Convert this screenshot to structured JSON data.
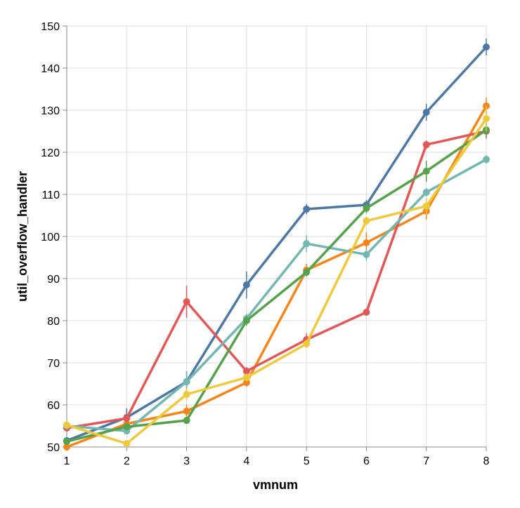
{
  "chart_data": {
    "type": "line",
    "xlabel": "vmnum",
    "ylabel": "util_overflow_handler",
    "x": [
      1,
      2,
      3,
      4,
      5,
      6,
      7,
      8
    ],
    "xlim": [
      1,
      8
    ],
    "ylim": [
      50,
      150
    ],
    "xticks": [
      1,
      2,
      3,
      4,
      5,
      6,
      7,
      8
    ],
    "yticks": [
      50,
      60,
      70,
      80,
      90,
      100,
      110,
      120,
      130,
      140,
      150
    ],
    "grid": true,
    "legend": "none",
    "series": [
      {
        "color": "#4c78a8",
        "values": [
          51.5,
          57,
          65.5,
          88.5,
          106.5,
          107.5,
          129.5,
          145
        ],
        "errors": [
          0.8,
          2.2,
          2.5,
          3.2,
          1.2,
          1.2,
          2.0,
          2.0
        ]
      },
      {
        "color": "#f58518",
        "values": [
          50,
          55.5,
          58.5,
          65.3,
          92,
          98.5,
          106,
          131
        ],
        "errors": [
          0.8,
          0.8,
          1.5,
          1.0,
          1.5,
          2.5,
          2.0,
          2.0
        ]
      },
      {
        "color": "#e45756",
        "values": [
          54.5,
          56.8,
          84.5,
          68,
          75.5,
          82,
          121.8,
          125
        ],
        "errors": [
          0.8,
          0.8,
          3.8,
          1.0,
          1.5,
          0.8,
          1.0,
          1.8
        ]
      },
      {
        "color": "#72b7b2",
        "values": [
          55,
          53.8,
          65.5,
          80.5,
          98.3,
          95.7,
          110.5,
          118.3
        ],
        "errors": [
          0.8,
          0.8,
          2.5,
          1.2,
          2.0,
          1.5,
          1.0,
          1.0
        ]
      },
      {
        "color": "#54a24b",
        "values": [
          51.3,
          54.8,
          56.3,
          80,
          91.5,
          106.7,
          115.5,
          125.3
        ],
        "errors": [
          0.8,
          1.0,
          0.8,
          1.2,
          1.0,
          1.2,
          2.5,
          1.8
        ]
      },
      {
        "color": "#eeca3b",
        "values": [
          55.2,
          50.8,
          62.5,
          66.5,
          74.5,
          103.7,
          107.2,
          128
        ],
        "errors": [
          0.8,
          0.8,
          1.5,
          1.0,
          1.0,
          1.0,
          2.0,
          3.0
        ]
      }
    ]
  }
}
